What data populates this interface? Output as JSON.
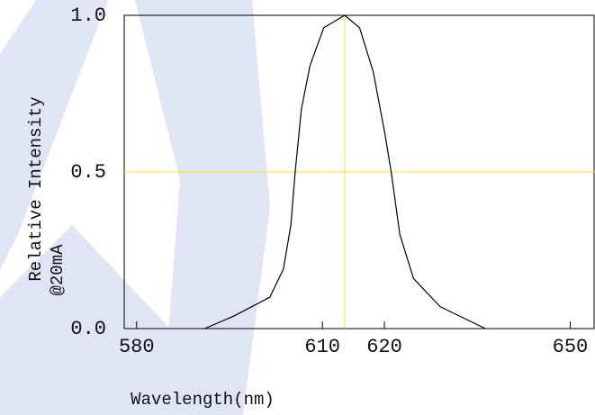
{
  "chart_data": {
    "type": "line",
    "ylabel": [
      "Relative Intensity",
      "@20mA"
    ],
    "xlabel": "Wavelength(nm)",
    "x": [
      591,
      595.7,
      601.5,
      603.7,
      604.9,
      605.6,
      606.6,
      608,
      610.2,
      613.6,
      616,
      618.2,
      620.1,
      621.1,
      622.5,
      624.7,
      629,
      636.3
    ],
    "series": [
      {
        "color": "#000000",
        "values": [
          0,
          0.04,
          0.1,
          0.19,
          0.33,
          0.5,
          0.7,
          0.84,
          0.96,
          1.0,
          0.96,
          0.82,
          0.62,
          0.5,
          0.3,
          0.16,
          0.07,
          0
        ]
      }
    ],
    "xlim": [
      578,
      654
    ],
    "ylim": [
      0,
      1.0
    ],
    "xticks": [
      580,
      610,
      620,
      650
    ],
    "yticks": [
      {
        "value": 0,
        "label": "0.0"
      },
      {
        "value": 0.5,
        "label": "0.5"
      },
      {
        "value": 1.0,
        "label": "1.0"
      }
    ],
    "crosshair": {
      "x": 613.6,
      "y": 0.5,
      "color": "#f2e21a"
    }
  }
}
